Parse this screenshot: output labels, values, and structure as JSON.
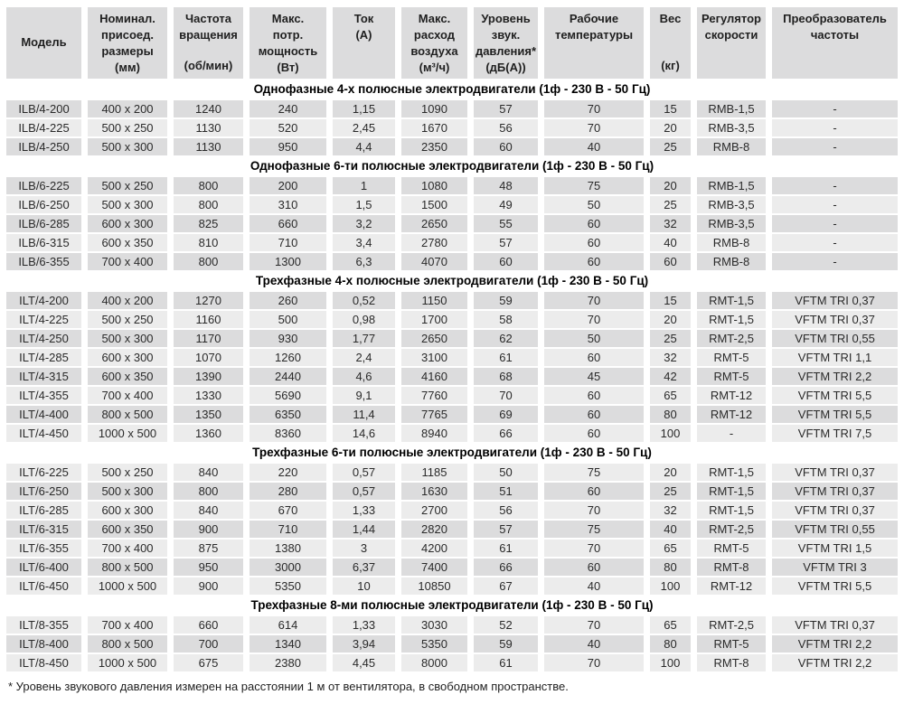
{
  "table": {
    "colors": {
      "row_dark": "#dcdcdd",
      "row_light": "#ececec",
      "header_bg": "#dcdcdd",
      "background": "#ffffff"
    },
    "columns": [
      {
        "id": "model",
        "title": [
          "Модель"
        ],
        "unit": null,
        "width": 83,
        "vcenter": true
      },
      {
        "id": "dimensions",
        "title": [
          "Номинал.",
          "присоед.",
          "размеры"
        ],
        "unit": "(мм)",
        "width": 88
      },
      {
        "id": "rpm",
        "title": [
          "Частота",
          "вращения"
        ],
        "unit": "(об/мин)",
        "width": 77
      },
      {
        "id": "power",
        "title": [
          "Макс.",
          "потр.",
          "мощность"
        ],
        "unit": "(Вт)",
        "width": 85
      },
      {
        "id": "current",
        "title": [
          "Ток",
          "(А)"
        ],
        "unit": null,
        "width": 69
      },
      {
        "id": "airflow",
        "title": [
          "Макс.",
          "расход",
          "воздуха"
        ],
        "unit": "(м³/ч)",
        "width": 73
      },
      {
        "id": "noise",
        "title": [
          "Уровень",
          "звук.",
          "давления*"
        ],
        "unit": "(дБ(А))",
        "width": 71
      },
      {
        "id": "temp",
        "title": [
          "Рабочие",
          "температуры"
        ],
        "unit": null,
        "width": 110
      },
      {
        "id": "weight",
        "title": [
          "Вес"
        ],
        "unit": "(кг)",
        "width": 45
      },
      {
        "id": "regulator",
        "title": [
          "Регулятор",
          "скорости"
        ],
        "unit": null,
        "width": 76
      },
      {
        "id": "converter",
        "title": [
          "Преобразователь",
          "частоты"
        ],
        "unit": null,
        "width": 139
      }
    ],
    "sections": [
      {
        "title": "Однофазные 4-х полюсные электродвигатели (1ф - 230 В - 50 Гц)",
        "rows": [
          [
            "ILB/4-200",
            "400 x 200",
            "1240",
            "240",
            "1,15",
            "1090",
            "57",
            "70",
            "15",
            "RMB-1,5",
            "-"
          ],
          [
            "ILB/4-225",
            "500 x 250",
            "1130",
            "520",
            "2,45",
            "1670",
            "56",
            "70",
            "20",
            "RMB-3,5",
            "-"
          ],
          [
            "ILB/4-250",
            "500 x 300",
            "1130",
            "950",
            "4,4",
            "2350",
            "60",
            "40",
            "25",
            "RMB-8",
            "-"
          ]
        ]
      },
      {
        "title": "Однофазные 6-ти полюсные электродвигатели (1ф - 230 В - 50 Гц)",
        "rows": [
          [
            "ILB/6-225",
            "500 x 250",
            "800",
            "200",
            "1",
            "1080",
            "48",
            "75",
            "20",
            "RMB-1,5",
            "-"
          ],
          [
            "ILB/6-250",
            "500 x 300",
            "800",
            "310",
            "1,5",
            "1500",
            "49",
            "50",
            "25",
            "RMB-3,5",
            "-"
          ],
          [
            "ILB/6-285",
            "600 x 300",
            "825",
            "660",
            "3,2",
            "2650",
            "55",
            "60",
            "32",
            "RMB-3,5",
            "-"
          ],
          [
            "ILB/6-315",
            "600 x 350",
            "810",
            "710",
            "3,4",
            "2780",
            "57",
            "60",
            "40",
            "RMB-8",
            "-"
          ],
          [
            "ILB/6-355",
            "700 x 400",
            "800",
            "1300",
            "6,3",
            "4070",
            "60",
            "60",
            "60",
            "RMB-8",
            "-"
          ]
        ]
      },
      {
        "title": "Трехфазные 4-х полюсные электродвигатели (1ф - 230 В - 50 Гц)",
        "rows": [
          [
            "ILT/4-200",
            "400 x 200",
            "1270",
            "260",
            "0,52",
            "1150",
            "59",
            "70",
            "15",
            "RMT-1,5",
            "VFTM TRI 0,37"
          ],
          [
            "ILT/4-225",
            "500 x 250",
            "1160",
            "500",
            "0,98",
            "1700",
            "58",
            "70",
            "20",
            "RMT-1,5",
            "VFTM TRI 0,37"
          ],
          [
            "ILT/4-250",
            "500 x 300",
            "1170",
            "930",
            "1,77",
            "2650",
            "62",
            "50",
            "25",
            "RMT-2,5",
            "VFTM TRI 0,55"
          ],
          [
            "ILT/4-285",
            "600 x 300",
            "1070",
            "1260",
            "2,4",
            "3100",
            "61",
            "60",
            "32",
            "RMT-5",
            "VFTM TRI 1,1"
          ],
          [
            "ILT/4-315",
            "600 x 350",
            "1390",
            "2440",
            "4,6",
            "4160",
            "68",
            "45",
            "42",
            "RMT-5",
            "VFTM TRI 2,2"
          ],
          [
            "ILT/4-355",
            "700 x 400",
            "1330",
            "5690",
            "9,1",
            "7760",
            "70",
            "60",
            "65",
            "RMT-12",
            "VFTM TRI 5,5"
          ],
          [
            "ILT/4-400",
            "800 x 500",
            "1350",
            "6350",
            "11,4",
            "7765",
            "69",
            "60",
            "80",
            "RMT-12",
            "VFTM TRI 5,5"
          ],
          [
            "ILT/4-450",
            "1000 x 500",
            "1360",
            "8360",
            "14,6",
            "8940",
            "66",
            "60",
            "100",
            "-",
            "VFTM TRI 7,5"
          ]
        ]
      },
      {
        "title": "Трехфазные 6-ти полюсные электродвигатели (1ф - 230 В - 50 Гц)",
        "rows": [
          [
            "ILT/6-225",
            "500 x 250",
            "840",
            "220",
            "0,57",
            "1185",
            "50",
            "75",
            "20",
            "RMT-1,5",
            "VFTM TRI 0,37"
          ],
          [
            "ILT/6-250",
            "500 x 300",
            "800",
            "280",
            "0,57",
            "1630",
            "51",
            "60",
            "25",
            "RMT-1,5",
            "VFTM TRI 0,37"
          ],
          [
            "ILT/6-285",
            "600 x 300",
            "840",
            "670",
            "1,33",
            "2700",
            "56",
            "70",
            "32",
            "RMT-1,5",
            "VFTM TRI 0,37"
          ],
          [
            "ILT/6-315",
            "600 x 350",
            "900",
            "710",
            "1,44",
            "2820",
            "57",
            "75",
            "40",
            "RMT-2,5",
            "VFTM TRI 0,55"
          ],
          [
            "ILT/6-355",
            "700 x 400",
            "875",
            "1380",
            "3",
            "4200",
            "61",
            "70",
            "65",
            "RMT-5",
            "VFTM TRI 1,5"
          ],
          [
            "ILT/6-400",
            "800 x 500",
            "950",
            "3000",
            "6,37",
            "7400",
            "66",
            "60",
            "80",
            "RMT-8",
            "VFTM TRI 3"
          ],
          [
            "ILT/6-450",
            "1000 x 500",
            "900",
            "5350",
            "10",
            "10850",
            "67",
            "40",
            "100",
            "RMT-12",
            "VFTM TRI 5,5"
          ]
        ]
      },
      {
        "title": "Трехфазные 8-ми полюсные электродвигатели (1ф - 230 В - 50 Гц)",
        "rows": [
          [
            "ILT/8-355",
            "700 x 400",
            "660",
            "614",
            "1,33",
            "3030",
            "52",
            "70",
            "65",
            "RMT-2,5",
            "VFTM TRI 0,37"
          ],
          [
            "ILT/8-400",
            "800 x 500",
            "700",
            "1340",
            "3,94",
            "5350",
            "59",
            "40",
            "80",
            "RMT-5",
            "VFTM TRI 2,2"
          ],
          [
            "ILT/8-450",
            "1000 x 500",
            "675",
            "2380",
            "4,45",
            "8000",
            "61",
            "70",
            "100",
            "RMT-8",
            "VFTM TRI 2,2"
          ]
        ]
      }
    ],
    "footnote": "* Уровень звукового давления измерен на расстоянии 1 м от вентилятора, в свободном пространстве."
  }
}
